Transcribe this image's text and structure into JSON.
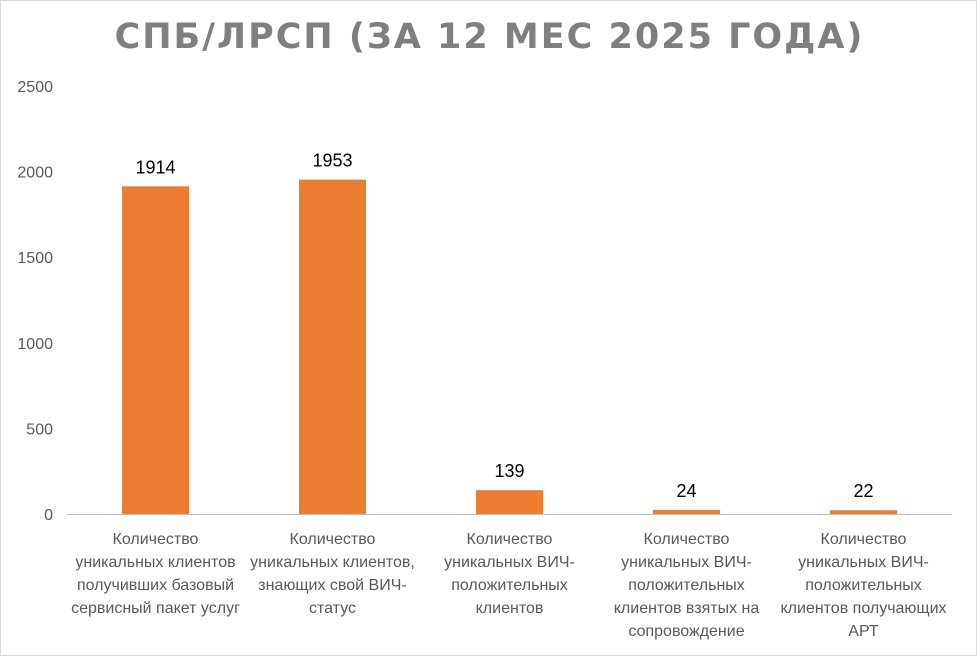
{
  "chart_data": {
    "type": "bar",
    "title": "СПБ/ЛРСП (ЗА 12 МЕС 2025 ГОДА)",
    "categories": [
      "Количество уникальных клиентов получивших базовый сервисный пакет услуг",
      "Количество уникальных клиентов, знающих свой ВИЧ-статус",
      "Количество уникальных ВИЧ-положительных клиентов",
      "Количество уникальных ВИЧ-положительных клиентов взятых на сопровождение",
      "Количество уникальных ВИЧ-положительных клиентов получающих АРТ"
    ],
    "values": [
      1914,
      1953,
      139,
      24,
      22
    ],
    "data_labels": [
      "1914",
      "1953",
      "139",
      "24",
      "22"
    ],
    "yticks": [
      "0",
      "500",
      "1000",
      "1500",
      "2000",
      "2500"
    ],
    "ylim": [
      0,
      2500
    ],
    "xlabel": "",
    "ylabel": "",
    "grid": false,
    "legend": "none",
    "bar_color": "#ed7d31"
  }
}
